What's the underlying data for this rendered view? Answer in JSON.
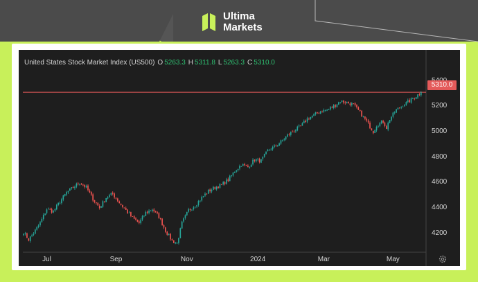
{
  "brand": {
    "name_line1": "Ultima",
    "name_line2": "Markets",
    "logo_icon": "ultima-markets-logo-icon",
    "accent_color": "#c8f05a"
  },
  "chart_header": {
    "instrument": "United States Stock Market Index (US500)",
    "open_label": "O",
    "open_value": "5263.3",
    "high_label": "H",
    "high_value": "5311.8",
    "low_label": "L",
    "low_value": "5263.3",
    "close_label": "C",
    "close_value": "5310.0"
  },
  "last_price_tag": "5310.0",
  "settings_icon": "gear-icon",
  "colors": {
    "up": "#26a69a",
    "down": "#ef5350",
    "price_line": "#e45a5a",
    "panel_bg": "#1e1e1e"
  },
  "chart_data": {
    "type": "candlestick",
    "title": "United States Stock Market Index (US500)",
    "ylim": [
      4050,
      5480
    ],
    "yticks": [
      4200,
      4400,
      4600,
      4800,
      5000,
      5200,
      5400
    ],
    "ytick_labels": [
      "4200",
      "4400",
      "4600",
      "4800",
      "5000",
      "5200",
      "5400"
    ],
    "xtick_labels": [
      "Jul",
      "Sep",
      "Nov",
      "2024",
      "Mar",
      "May"
    ],
    "xtick_positions": [
      14,
      56,
      99,
      142,
      182,
      224
    ],
    "n_bars": 242,
    "last_price": 5310.0,
    "close_path": [
      [
        0,
        4210
      ],
      [
        3,
        4150
      ],
      [
        6,
        4200
      ],
      [
        10,
        4280
      ],
      [
        14,
        4390
      ],
      [
        18,
        4370
      ],
      [
        22,
        4450
      ],
      [
        26,
        4520
      ],
      [
        30,
        4560
      ],
      [
        34,
        4600
      ],
      [
        38,
        4560
      ],
      [
        42,
        4470
      ],
      [
        46,
        4400
      ],
      [
        50,
        4480
      ],
      [
        54,
        4510
      ],
      [
        58,
        4440
      ],
      [
        62,
        4380
      ],
      [
        66,
        4320
      ],
      [
        70,
        4280
      ],
      [
        74,
        4360
      ],
      [
        78,
        4390
      ],
      [
        82,
        4330
      ],
      [
        86,
        4220
      ],
      [
        90,
        4140
      ],
      [
        93,
        4120
      ],
      [
        96,
        4280
      ],
      [
        100,
        4380
      ],
      [
        104,
        4420
      ],
      [
        108,
        4480
      ],
      [
        112,
        4530
      ],
      [
        116,
        4560
      ],
      [
        120,
        4580
      ],
      [
        124,
        4620
      ],
      [
        128,
        4690
      ],
      [
        132,
        4740
      ],
      [
        136,
        4720
      ],
      [
        140,
        4780
      ],
      [
        144,
        4770
      ],
      [
        148,
        4850
      ],
      [
        152,
        4880
      ],
      [
        156,
        4920
      ],
      [
        160,
        4970
      ],
      [
        164,
        5010
      ],
      [
        168,
        5040
      ],
      [
        172,
        5100
      ],
      [
        176,
        5130
      ],
      [
        180,
        5160
      ],
      [
        184,
        5170
      ],
      [
        188,
        5200
      ],
      [
        192,
        5240
      ],
      [
        196,
        5230
      ],
      [
        200,
        5210
      ],
      [
        204,
        5150
      ],
      [
        208,
        5080
      ],
      [
        210,
        5040
      ],
      [
        212,
        5000
      ],
      [
        214,
        5050
      ],
      [
        218,
        5080
      ],
      [
        220,
        5030
      ],
      [
        222,
        5100
      ],
      [
        226,
        5170
      ],
      [
        230,
        5210
      ],
      [
        234,
        5240
      ],
      [
        238,
        5280
      ],
      [
        241,
        5310
      ]
    ]
  }
}
